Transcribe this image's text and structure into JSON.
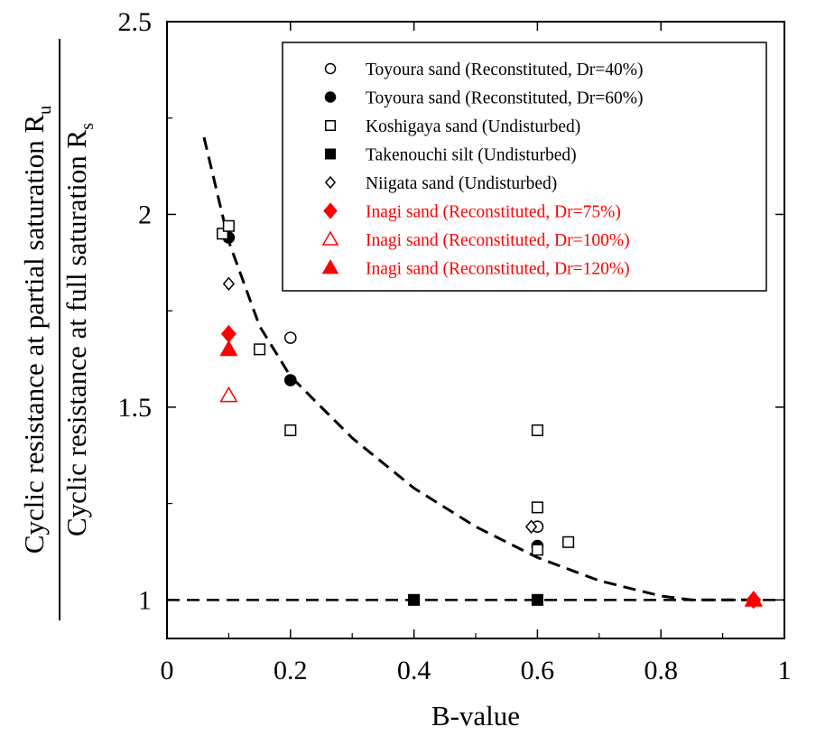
{
  "chart_data": {
    "type": "scatter",
    "xlabel": "B-value",
    "ylabel": {
      "numerator": "Cyclic resistance at partial saturation R",
      "numerator_sub": "u",
      "denominator": "Cyclic resistance at full saturation R",
      "denominator_sub": "s"
    },
    "xlim": [
      0,
      1
    ],
    "ylim": [
      0.9,
      2.5
    ],
    "xticks": [
      0,
      0.2,
      0.4,
      0.6,
      0.8,
      1
    ],
    "xtick_labels": [
      "0",
      "0.2",
      "0.4",
      "0.6",
      "0.8",
      "1"
    ],
    "yticks": [
      1,
      1.5,
      2,
      2.5
    ],
    "ytick_labels": [
      "1",
      "1.5",
      "2",
      "2.5"
    ],
    "grid": false,
    "legend_position": "top-right",
    "reference_lines": [
      {
        "type": "horizontal",
        "y": 1,
        "style": "dashed"
      },
      {
        "type": "curve",
        "style": "dashed",
        "points": [
          [
            0.06,
            2.2
          ],
          [
            0.1,
            1.93
          ],
          [
            0.15,
            1.71
          ],
          [
            0.2,
            1.58
          ],
          [
            0.3,
            1.42
          ],
          [
            0.4,
            1.29
          ],
          [
            0.5,
            1.19
          ],
          [
            0.6,
            1.11
          ],
          [
            0.7,
            1.05
          ],
          [
            0.8,
            1.01
          ],
          [
            0.85,
            1.0
          ],
          [
            0.95,
            1.0
          ]
        ]
      }
    ],
    "series": [
      {
        "name": "Toyoura sand (Reconstituted, Dr=40%)",
        "marker": "circle",
        "filled": false,
        "color": "#000000",
        "points": [
          [
            0.2,
            1.68
          ],
          [
            0.6,
            1.19
          ]
        ]
      },
      {
        "name": "Toyoura sand (Reconstituted, Dr=60%)",
        "marker": "circle",
        "filled": true,
        "color": "#000000",
        "points": [
          [
            0.1,
            1.94
          ],
          [
            0.2,
            1.57
          ],
          [
            0.6,
            1.14
          ]
        ]
      },
      {
        "name": "Koshigaya sand (Undisturbed)",
        "marker": "square",
        "filled": false,
        "color": "#000000",
        "points": [
          [
            0.09,
            1.95
          ],
          [
            0.1,
            1.97
          ],
          [
            0.15,
            1.65
          ],
          [
            0.2,
            1.44
          ],
          [
            0.6,
            1.44
          ],
          [
            0.6,
            1.24
          ],
          [
            0.6,
            1.13
          ],
          [
            0.65,
            1.15
          ]
        ]
      },
      {
        "name": "Takenouchi silt (Undisturbed)",
        "marker": "square",
        "filled": true,
        "color": "#000000",
        "points": [
          [
            0.4,
            1.0
          ],
          [
            0.6,
            1.0
          ]
        ]
      },
      {
        "name": "Niigata sand (Undisturbed)",
        "marker": "diamond",
        "filled": false,
        "color": "#000000",
        "points": [
          [
            0.1,
            1.82
          ],
          [
            0.59,
            1.19
          ]
        ]
      },
      {
        "name": "Inagi sand (Reconstituted, Dr=75%)",
        "marker": "diamond",
        "filled": true,
        "color": "#ff0000",
        "points": [
          [
            0.1,
            1.69
          ],
          [
            0.95,
            1.0
          ]
        ]
      },
      {
        "name": "Inagi sand (Reconstituted, Dr=100%)",
        "marker": "triangle",
        "filled": false,
        "color": "#ff0000",
        "points": [
          [
            0.1,
            1.53
          ],
          [
            0.95,
            1.0
          ]
        ]
      },
      {
        "name": "Inagi sand (Reconstituted, Dr=120%)",
        "marker": "triangle",
        "filled": true,
        "color": "#ff0000",
        "points": [
          [
            0.1,
            1.65
          ],
          [
            0.95,
            1.0
          ]
        ]
      }
    ]
  }
}
